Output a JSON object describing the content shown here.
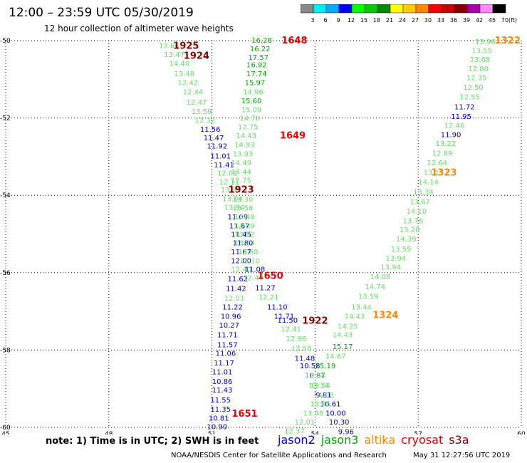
{
  "header": {
    "title": "12:00 – 23:59 UTC 05/30/2019",
    "subtitle": "12 hour collection of altimeter wave heights"
  },
  "colorbar": {
    "unit": "(ft)",
    "ticks": [
      "3",
      "6",
      "9",
      "12",
      "15",
      "18",
      "21",
      "24",
      "27",
      "30",
      "33",
      "36",
      "39",
      "42",
      "45",
      "70"
    ],
    "colors": [
      "#888888",
      "#00eeee",
      "#00aaff",
      "#0000ff",
      "#00ff00",
      "#00cc00",
      "#008800",
      "#ffff00",
      "#ffcc00",
      "#ff8800",
      "#ff0000",
      "#cc0000",
      "#880000",
      "#aa00aa",
      "#ff88ff",
      "#000000"
    ]
  },
  "footer": {
    "note": "note: 1) Time is in UTC; 2) SWH is in feet",
    "credit": "NOAA/NESDIS Center for Satellite Applications and Research",
    "timestamp": "May 31 12:27:56 UTC 2019"
  },
  "legend": [
    {
      "label": "jason2",
      "color": "#0000cc"
    },
    {
      "label": "jason3",
      "color": "#00aa00"
    },
    {
      "label": "altika",
      "color": "#ff8800"
    },
    {
      "label": "cryosat",
      "color": "#dd0000"
    },
    {
      "label": "s3a",
      "color": "#880000"
    }
  ],
  "chart_data": {
    "type": "scatter",
    "xlim": [
      45,
      60
    ],
    "ylim": [
      -60,
      -50
    ],
    "xticks": [
      45,
      48,
      51,
      54,
      57,
      60
    ],
    "yticks": [
      -50,
      -52,
      -54,
      -56,
      -58,
      -60
    ],
    "grid": true,
    "colors": {
      "light": "#66dd66",
      "mid": "#00aa00",
      "blue": "#0000cc",
      "orange": "#ff8800",
      "red": "#ee0000",
      "dark": "#880000"
    },
    "pass_labels": [
      {
        "text": "1925",
        "x": 50.25,
        "y": -50.12,
        "c": "dark"
      },
      {
        "text": "1924",
        "x": 50.55,
        "y": -50.38,
        "c": "dark"
      },
      {
        "text": "1648",
        "x": 53.4,
        "y": -49.98,
        "c": "red"
      },
      {
        "text": "1649",
        "x": 53.35,
        "y": -52.44,
        "c": "red"
      },
      {
        "text": "1923",
        "x": 51.85,
        "y": -53.84,
        "c": "dark"
      },
      {
        "text": "1650",
        "x": 52.7,
        "y": -56.07,
        "c": "red"
      },
      {
        "text": "1922",
        "x": 54.0,
        "y": -57.23,
        "c": "dark"
      },
      {
        "text": "1651",
        "x": 51.95,
        "y": -59.63,
        "c": "red"
      },
      {
        "text": "1322",
        "x": 59.6,
        "y": -49.98,
        "c": "orange"
      },
      {
        "text": "1323",
        "x": 57.75,
        "y": -53.4,
        "c": "orange"
      },
      {
        "text": "1324",
        "x": 56.05,
        "y": -57.08,
        "c": "orange"
      }
    ],
    "tracks": [
      {
        "name": "track-a",
        "points": [
          [
            49.75,
            -50.12,
            "13.66",
            "light"
          ],
          [
            49.9,
            -50.35,
            "13.47",
            "light"
          ],
          [
            50.05,
            -50.58,
            "14.40",
            "light"
          ],
          [
            50.2,
            -50.85,
            "13.48",
            "light"
          ],
          [
            50.3,
            -51.08,
            "12.42",
            "light"
          ],
          [
            50.45,
            -51.32,
            "12.44",
            "light"
          ],
          [
            50.55,
            -51.58,
            "12.47",
            "light"
          ],
          [
            50.7,
            -51.82,
            "13.59",
            "light"
          ],
          [
            50.8,
            -52.05,
            "12.32",
            "light"
          ],
          [
            50.95,
            -52.28,
            "11.56",
            "blue"
          ],
          [
            51.05,
            -52.5,
            "11.47",
            "blue"
          ],
          [
            51.15,
            -52.72,
            "11.92",
            "blue"
          ],
          [
            51.25,
            -52.97,
            "11.01",
            "blue"
          ],
          [
            51.35,
            -53.2,
            "11.41",
            "blue"
          ],
          [
            51.45,
            -53.42,
            "12.02",
            "light"
          ],
          [
            51.5,
            -53.65,
            "12.11",
            "light"
          ],
          [
            51.55,
            -53.85,
            "13.85",
            "light"
          ],
          [
            51.6,
            -54.08,
            "13.04",
            "light"
          ],
          [
            51.65,
            -54.3,
            "13.94",
            "light"
          ],
          [
            51.75,
            -54.55,
            "11.09",
            "blue"
          ],
          [
            51.8,
            -54.78,
            "11.67",
            "blue"
          ],
          [
            51.85,
            -55.0,
            "11.45",
            "blue"
          ],
          [
            51.9,
            -55.22,
            "11.80",
            "blue"
          ],
          [
            51.85,
            -55.45,
            "11.67",
            "blue"
          ],
          [
            51.85,
            -55.68,
            "12.00",
            "blue"
          ],
          [
            51.85,
            -55.9,
            "12.40",
            "light"
          ],
          [
            51.75,
            -56.15,
            "11.62",
            "blue"
          ],
          [
            51.7,
            -56.4,
            "11.42",
            "blue"
          ],
          [
            51.65,
            -56.65,
            "12.01",
            "light"
          ],
          [
            51.6,
            -56.88,
            "11.22",
            "blue"
          ],
          [
            51.55,
            -57.12,
            "10.96",
            "blue"
          ],
          [
            51.5,
            -57.35,
            "10.27",
            "blue"
          ],
          [
            51.45,
            -57.6,
            "11.71",
            "blue"
          ],
          [
            51.45,
            -57.85,
            "11.57",
            "blue"
          ],
          [
            51.4,
            -58.08,
            "11.06",
            "blue"
          ],
          [
            51.35,
            -58.32,
            "11.17",
            "blue"
          ],
          [
            51.3,
            -58.55,
            "11.01",
            "blue"
          ],
          [
            51.3,
            -58.8,
            "10.86",
            "blue"
          ],
          [
            51.3,
            -59.02,
            "11.43",
            "blue"
          ],
          [
            51.25,
            -59.28,
            "11.55",
            "blue"
          ],
          [
            51.25,
            -59.52,
            "11.35",
            "blue"
          ],
          [
            51.2,
            -59.75,
            "10.81",
            "blue"
          ],
          [
            51.15,
            -59.97,
            "10.90",
            "blue"
          ]
        ]
      },
      {
        "name": "track-b",
        "points": [
          [
            52.45,
            -49.98,
            "16.28",
            "mid"
          ],
          [
            52.4,
            -50.2,
            "16.22",
            "mid"
          ],
          [
            52.35,
            -50.42,
            "17.57",
            "mid"
          ],
          [
            52.3,
            -50.62,
            "16.92",
            "mid"
          ],
          [
            52.3,
            -50.85,
            "17.74",
            "mid"
          ],
          [
            52.25,
            -51.08,
            "15.97",
            "mid"
          ],
          [
            52.2,
            -51.32,
            "14.96",
            "light"
          ],
          [
            52.15,
            -51.55,
            "15.60",
            "mid"
          ],
          [
            52.15,
            -51.78,
            "15.09",
            "light"
          ],
          [
            52.1,
            -52.0,
            "14.70",
            "light"
          ],
          [
            52.05,
            -52.22,
            "12.75",
            "light"
          ],
          [
            52.0,
            -52.45,
            "14.43",
            "light"
          ],
          [
            51.95,
            -52.68,
            "14.93",
            "light"
          ],
          [
            51.9,
            -52.92,
            "13.93",
            "light"
          ],
          [
            51.85,
            -53.15,
            "14.49",
            "light"
          ],
          [
            51.85,
            -53.38,
            "13.44",
            "light"
          ],
          [
            51.85,
            -53.6,
            "12.75",
            "light"
          ],
          [
            51.9,
            -54.1,
            "13.30",
            "light"
          ],
          [
            51.9,
            -54.32,
            "13.58",
            "light"
          ],
          [
            51.95,
            -54.55,
            "13.40",
            "light"
          ],
          [
            51.95,
            -54.78,
            "13.89",
            "light"
          ],
          [
            51.95,
            -55.0,
            "13.52",
            "light"
          ],
          [
            51.95,
            -55.22,
            "13.24",
            "light"
          ],
          [
            52.05,
            -55.45,
            "13.48",
            "light"
          ],
          [
            52.1,
            -55.68,
            "13.10",
            "light"
          ],
          [
            52.25,
            -55.9,
            "11.08",
            "blue"
          ],
          [
            52.2,
            -56.12,
            "12.40",
            "light"
          ],
          [
            52.55,
            -56.38,
            "11.27",
            "blue"
          ],
          [
            52.65,
            -56.62,
            "12.21",
            "light"
          ],
          [
            52.9,
            -56.88,
            "11.10",
            "blue"
          ],
          [
            53.1,
            -57.12,
            "11.71",
            "blue"
          ],
          [
            53.2,
            -57.22,
            "11.50",
            "blue"
          ],
          [
            53.3,
            -57.45,
            "12.41",
            "light"
          ],
          [
            53.45,
            -57.7,
            "12.96",
            "light"
          ],
          [
            53.6,
            -57.95,
            "12.58",
            "light"
          ],
          [
            53.7,
            -58.2,
            "11.48",
            "blue"
          ],
          [
            53.85,
            -58.4,
            "10.58",
            "blue"
          ],
          [
            54.0,
            -58.65,
            "10.87",
            "blue"
          ],
          [
            54.15,
            -58.9,
            "13.54",
            "light"
          ],
          [
            54.25,
            -59.15,
            "9.81",
            "blue"
          ],
          [
            54.45,
            -59.38,
            "10.61",
            "blue"
          ],
          [
            54.6,
            -59.62,
            "10.00",
            "blue"
          ],
          [
            54.7,
            -59.85,
            "10.30",
            "blue"
          ],
          [
            54.9,
            -60.1,
            "9.96",
            "blue"
          ]
        ]
      },
      {
        "name": "track-c",
        "points": [
          [
            54.1,
            -58.9,
            "13.34",
            "light"
          ],
          [
            54.0,
            -58.65,
            "13.04",
            "light"
          ],
          [
            54.3,
            -58.4,
            "15.19",
            "mid"
          ],
          [
            54.25,
            -59.15,
            "14.08",
            "light"
          ],
          [
            54.15,
            -59.38,
            "13.85",
            "light"
          ],
          [
            53.95,
            -59.62,
            "13.48",
            "light"
          ],
          [
            53.7,
            -59.85,
            "12.01",
            "light"
          ],
          [
            53.4,
            -60.08,
            "12.37",
            "light"
          ],
          [
            54.6,
            -58.15,
            "14.67",
            "light"
          ],
          [
            54.8,
            -57.9,
            "15.17",
            "mid"
          ],
          [
            54.8,
            -57.6,
            "14.43",
            "light"
          ],
          [
            54.95,
            -57.38,
            "14.25",
            "light"
          ],
          [
            55.15,
            -57.12,
            "14.43",
            "light"
          ],
          [
            55.35,
            -56.88,
            "13.44",
            "light"
          ],
          [
            55.55,
            -56.6,
            "13.59",
            "light"
          ],
          [
            55.75,
            -56.35,
            "14.74",
            "light"
          ],
          [
            55.9,
            -56.1,
            "14.08",
            "light"
          ],
          [
            56.2,
            -55.85,
            "13.94",
            "light"
          ],
          [
            56.35,
            -55.62,
            "13.94",
            "light"
          ],
          [
            56.5,
            -55.38,
            "13.59",
            "light"
          ],
          [
            56.65,
            -55.12,
            "14.39",
            "light"
          ],
          [
            56.75,
            -54.88,
            "13.20",
            "light"
          ],
          [
            56.85,
            -54.65,
            "13.76",
            "light"
          ],
          [
            56.95,
            -54.4,
            "14.10",
            "light"
          ],
          [
            57.05,
            -54.15,
            "13.67",
            "light"
          ],
          [
            57.15,
            -53.9,
            "13.34",
            "light"
          ],
          [
            57.3,
            -53.65,
            "14.14",
            "light"
          ],
          [
            57.45,
            -53.4,
            "13.15",
            "light"
          ],
          [
            57.55,
            -53.15,
            "12.64",
            "light"
          ],
          [
            57.7,
            -52.9,
            "12.89",
            "light"
          ],
          [
            57.8,
            -52.65,
            "13.22",
            "light"
          ],
          [
            57.95,
            -52.42,
            "11.90",
            "blue"
          ],
          [
            58.05,
            -52.18,
            "12.46",
            "light"
          ],
          [
            58.25,
            -51.95,
            "11.95",
            "blue"
          ],
          [
            58.35,
            -51.7,
            "11.72",
            "blue"
          ],
          [
            58.5,
            -51.45,
            "12.55",
            "light"
          ],
          [
            58.6,
            -51.2,
            "12.50",
            "light"
          ],
          [
            58.7,
            -50.95,
            "12.35",
            "light"
          ],
          [
            58.75,
            -50.72,
            "12.80",
            "light"
          ],
          [
            58.8,
            -50.48,
            "13.68",
            "light"
          ],
          [
            58.85,
            -50.25,
            "13.55",
            "light"
          ],
          [
            58.95,
            -50.02,
            "13.96",
            "light"
          ]
        ]
      }
    ]
  }
}
